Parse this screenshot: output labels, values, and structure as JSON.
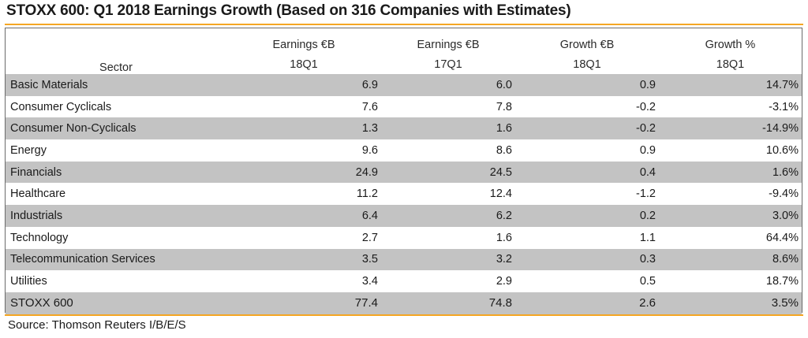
{
  "title": "STOXX 600: Q1 2018 Earnings Growth (Based on 316 Companies with Estimates)",
  "source": "Source: Thomson Reuters I/B/E/S",
  "colors": {
    "rule": "#f5a623",
    "shade": "#c3c3c3"
  },
  "headers": {
    "sector": "Sector",
    "col1": {
      "line1": "Earnings €B",
      "line2": "18Q1"
    },
    "col2": {
      "line1": "Earnings €B",
      "line2": "17Q1"
    },
    "col3": {
      "line1": "Growth €B",
      "line2": "18Q1"
    },
    "col4": {
      "line1": "Growth %",
      "line2": "18Q1"
    }
  },
  "chart_data": {
    "type": "table",
    "title": "STOXX 600: Q1 2018 Earnings Growth (Based on 316 Companies with Estimates)",
    "columns": [
      "Sector",
      "Earnings €B 18Q1",
      "Earnings €B 17Q1",
      "Growth €B 18Q1",
      "Growth % 18Q1"
    ],
    "rows": [
      [
        "Basic Materials",
        "6.9",
        "6.0",
        "0.9",
        "14.7%"
      ],
      [
        "Consumer Cyclicals",
        "7.6",
        "7.8",
        "-0.2",
        "-3.1%"
      ],
      [
        "Consumer Non-Cyclicals",
        "1.3",
        "1.6",
        "-0.2",
        "-14.9%"
      ],
      [
        "Energy",
        "9.6",
        "8.6",
        "0.9",
        "10.6%"
      ],
      [
        "Financials",
        "24.9",
        "24.5",
        "0.4",
        "1.6%"
      ],
      [
        "Healthcare",
        "11.2",
        "12.4",
        "-1.2",
        "-9.4%"
      ],
      [
        "Industrials",
        "6.4",
        "6.2",
        "0.2",
        "3.0%"
      ],
      [
        "Technology",
        "2.7",
        "1.6",
        "1.1",
        "64.4%"
      ],
      [
        "Telecommunication Services",
        "3.5",
        "3.2",
        "0.3",
        "8.6%"
      ],
      [
        "Utilities",
        "3.4",
        "2.9",
        "0.5",
        "18.7%"
      ]
    ],
    "total": [
      "STOXX 600",
      "77.4",
      "74.8",
      "2.6",
      "3.5%"
    ]
  }
}
